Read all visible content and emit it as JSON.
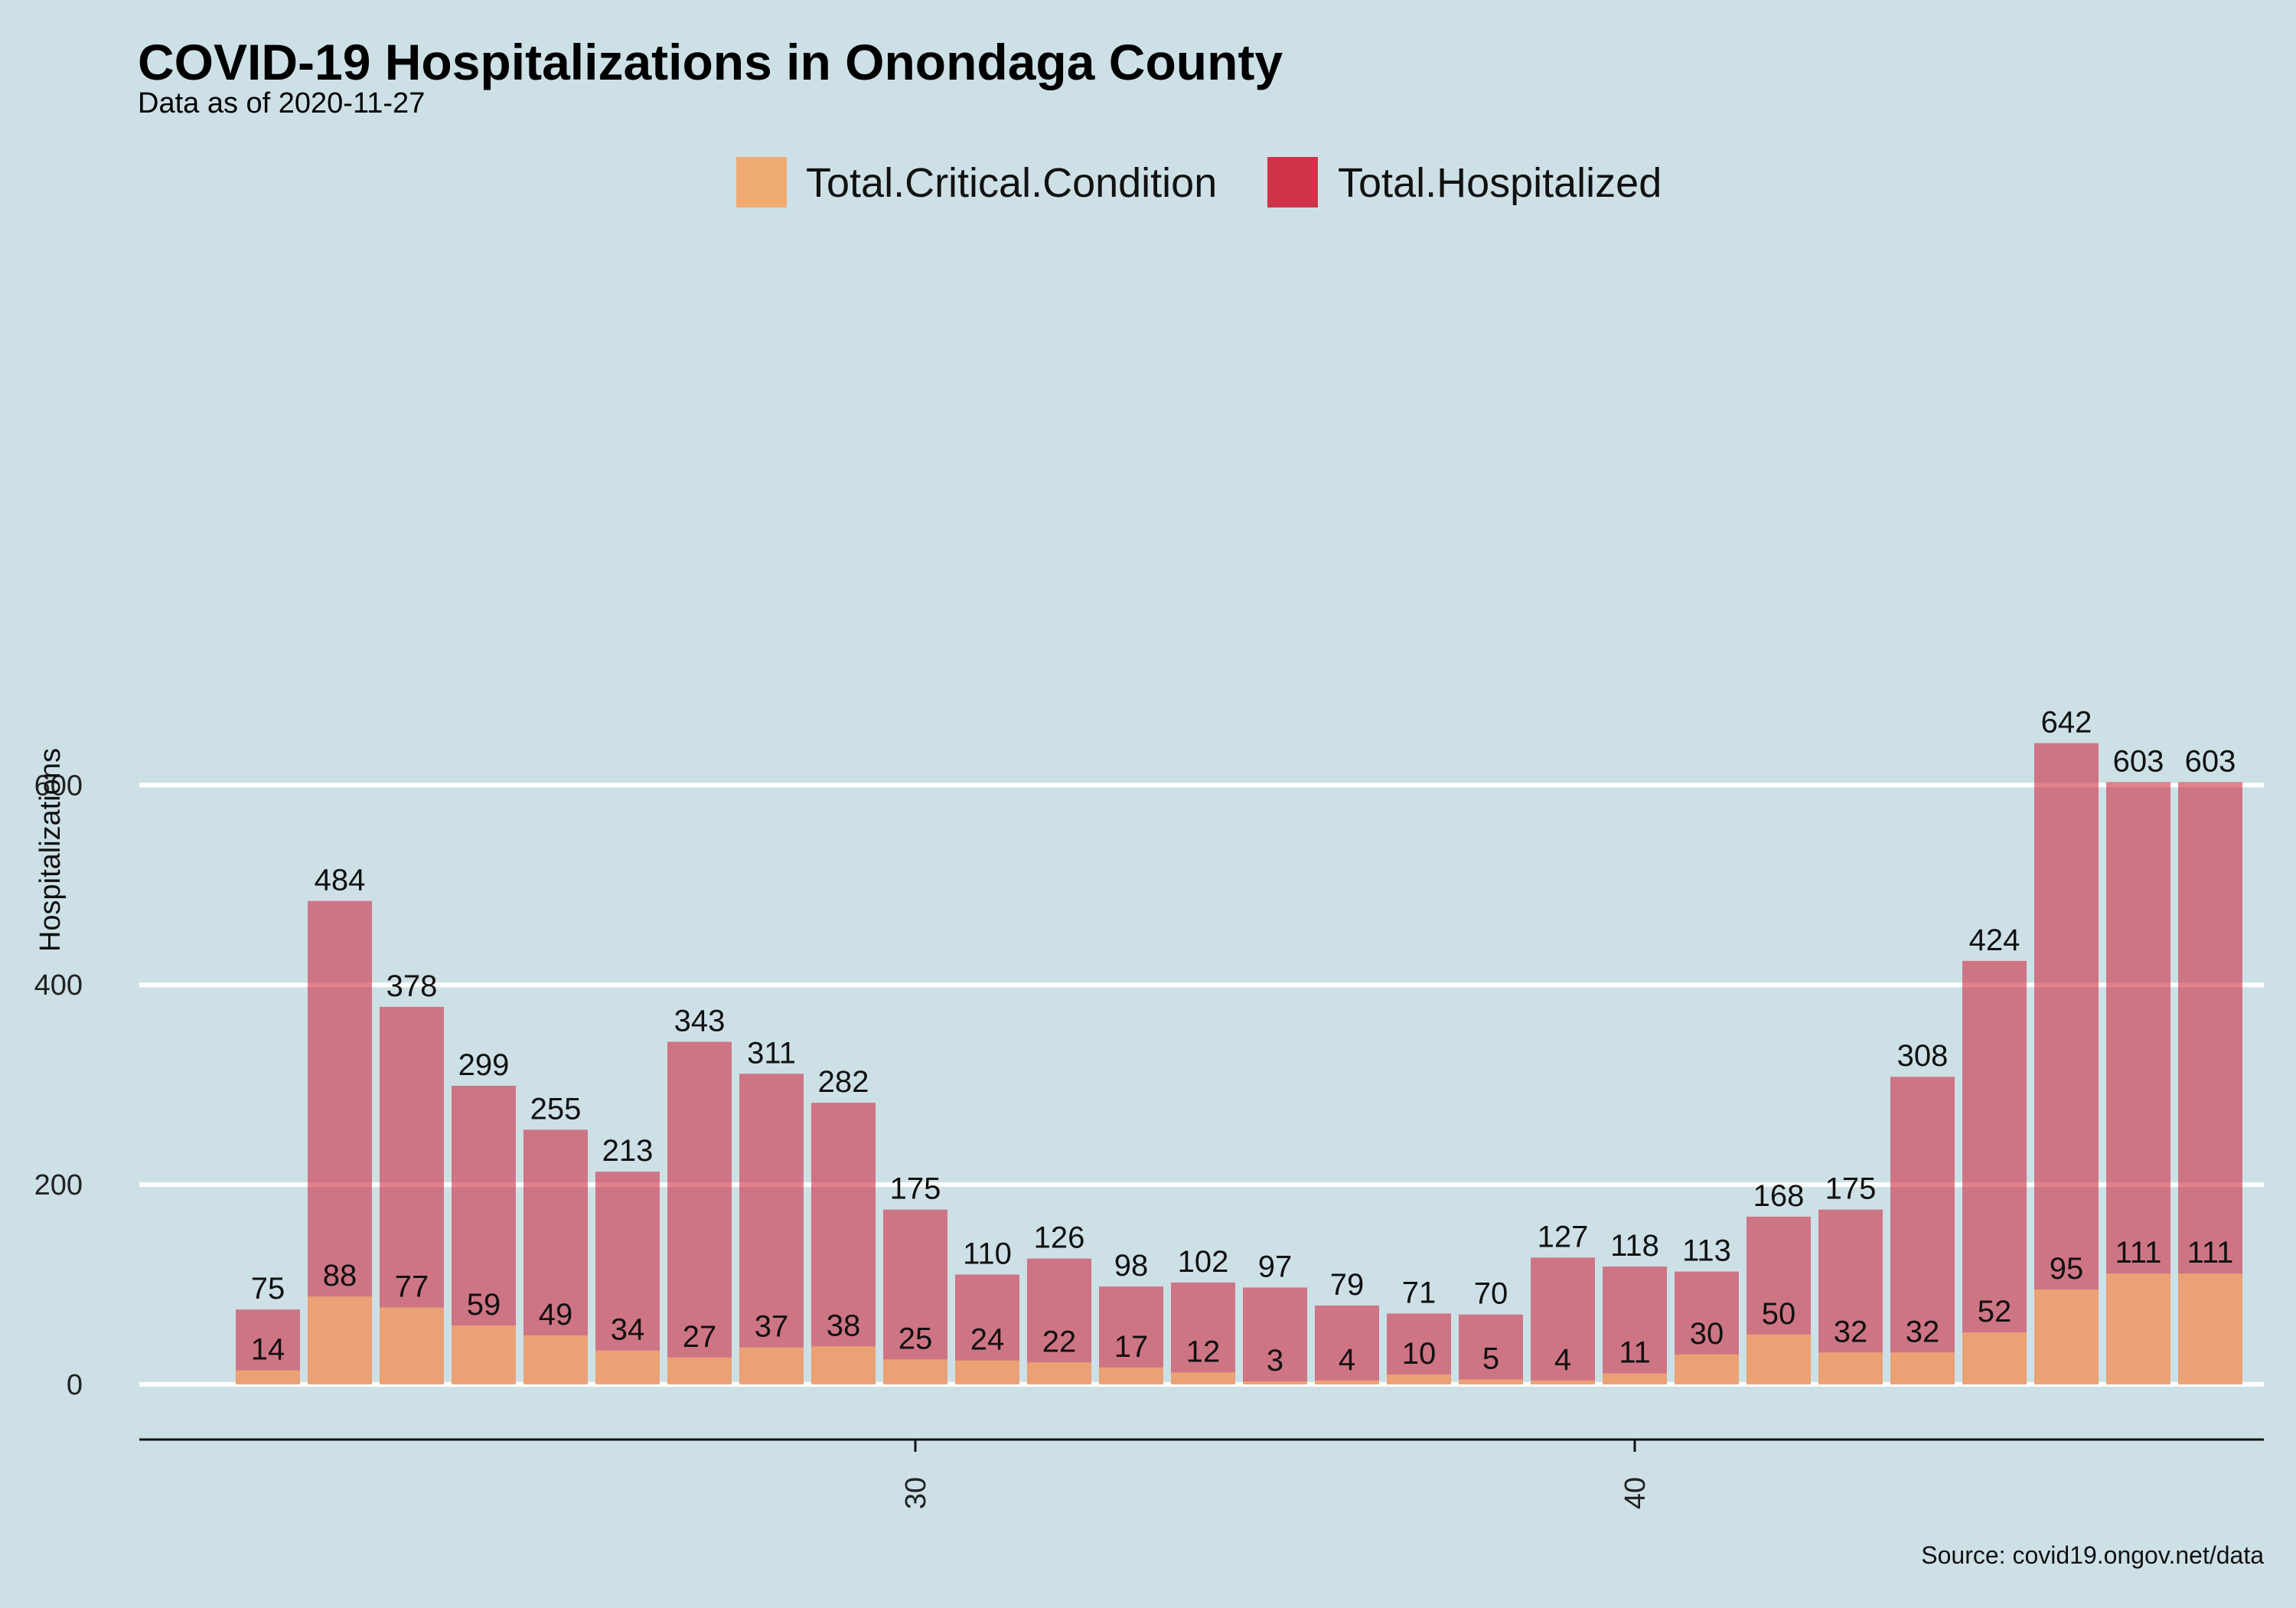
{
  "chart_data": {
    "type": "bar",
    "title": "COVID-19 Hospitalizations in Onondaga County",
    "subtitle": "Data as of 2020-11-27",
    "ylabel": "Hospitalizations",
    "xlabel": "",
    "caption": "Source: covid19.ongov.net/data",
    "ylim": [
      0,
      700
    ],
    "yticks": [
      0,
      200,
      400,
      600
    ],
    "xticks": [
      30,
      40
    ],
    "legend_position": "top",
    "x": [
      21,
      22,
      23,
      24,
      25,
      26,
      27,
      28,
      29,
      30,
      31,
      32,
      33,
      34,
      35,
      36,
      37,
      38,
      39,
      40,
      41,
      42,
      43,
      44,
      45,
      46,
      47,
      48
    ],
    "series": [
      {
        "name": "Total.Critical.Condition",
        "color": "#f0ab72",
        "values": [
          14,
          88,
          77,
          59,
          49,
          34,
          27,
          37,
          38,
          25,
          24,
          22,
          17,
          12,
          3,
          4,
          10,
          5,
          4,
          11,
          30,
          50,
          32,
          32,
          52,
          95,
          111,
          111
        ]
      },
      {
        "name": "Total.Hospitalized",
        "color": "#cf3349",
        "values": [
          75,
          484,
          378,
          299,
          255,
          213,
          343,
          311,
          282,
          175,
          110,
          126,
          98,
          102,
          97,
          79,
          71,
          70,
          127,
          118,
          113,
          168,
          175,
          308,
          424,
          642,
          603,
          603
        ]
      }
    ],
    "grid": true
  }
}
